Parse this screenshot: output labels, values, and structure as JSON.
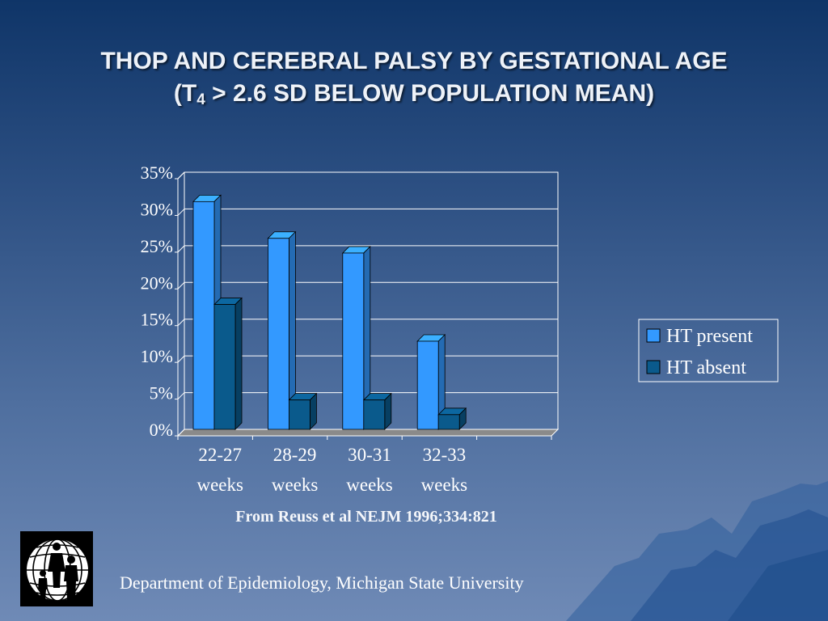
{
  "slide": {
    "title_line1": "THOP AND CEREBRAL PALSY BY GESTATIONAL AGE",
    "title_line2_prefix": "(T",
    "title_line2_sub": "4",
    "title_line2_suffix": " > 2.6 SD BELOW POPULATION MEAN)",
    "source": "From Reuss et al NEJM 1996;334:821",
    "footer": "Department of Epidemiology, Michigan State University"
  },
  "colors": {
    "background_top": "#0f3568",
    "background_bottom": "#6f8ab6",
    "ht_present": "#3399ff",
    "ht_absent": "#0a5a8c"
  },
  "chart_data": {
    "type": "bar",
    "style": "3d-clustered-column",
    "categories": [
      [
        "22-27",
        "weeks"
      ],
      [
        "28-29",
        "weeks"
      ],
      [
        "30-31",
        "weeks"
      ],
      [
        "32-33",
        "weeks"
      ]
    ],
    "series": [
      {
        "name": "HT present",
        "color": "#3399ff",
        "values": [
          0.31,
          0.26,
          0.24,
          0.12
        ]
      },
      {
        "name": "HT absent",
        "color": "#0a5a8c",
        "values": [
          0.17,
          0.04,
          0.04,
          0.02
        ]
      }
    ],
    "yticks": [
      "0%",
      "5%",
      "10%",
      "15%",
      "20%",
      "25%",
      "30%",
      "35%"
    ],
    "ylim": [
      0,
      0.35
    ],
    "grid": true,
    "legend": "right"
  }
}
